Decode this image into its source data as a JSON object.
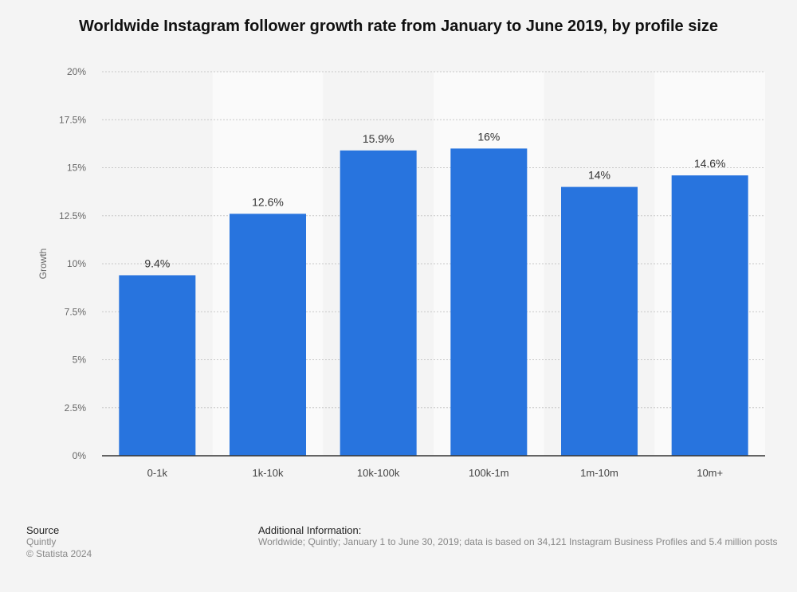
{
  "title": "Worldwide Instagram follower growth rate from January to June 2019, by profile size",
  "footer": {
    "source_heading": "Source",
    "source_name": "Quintly",
    "copyright": "© Statista 2024",
    "info_heading": "Additional Information:",
    "info_text": "Worldwide; Quintly; January 1 to June 30, 2019; data is based on 34,121 Instagram Business Profiles and 5.4 million posts"
  },
  "chart_data": {
    "type": "bar",
    "title": "Worldwide Instagram follower growth rate from January to June 2019, by profile size",
    "xlabel": "",
    "ylabel": "Growth",
    "categories": [
      "0-1k",
      "1k-10k",
      "10k-100k",
      "100k-1m",
      "1m-10m",
      "10m+"
    ],
    "values": [
      9.4,
      12.6,
      15.9,
      16,
      14,
      14.6
    ],
    "value_labels": [
      "9.4%",
      "12.6%",
      "15.9%",
      "16%",
      "14%",
      "14.6%"
    ],
    "ylim": [
      0,
      20
    ],
    "yticks": [
      0,
      2.5,
      5,
      7.5,
      10,
      12.5,
      15,
      17.5,
      20
    ],
    "ytick_labels": [
      "0%",
      "2.5%",
      "5%",
      "7.5%",
      "10%",
      "12.5%",
      "15%",
      "17.5%",
      "20%"
    ],
    "grid": true,
    "legend": "none",
    "bar_color": "#2874de"
  }
}
